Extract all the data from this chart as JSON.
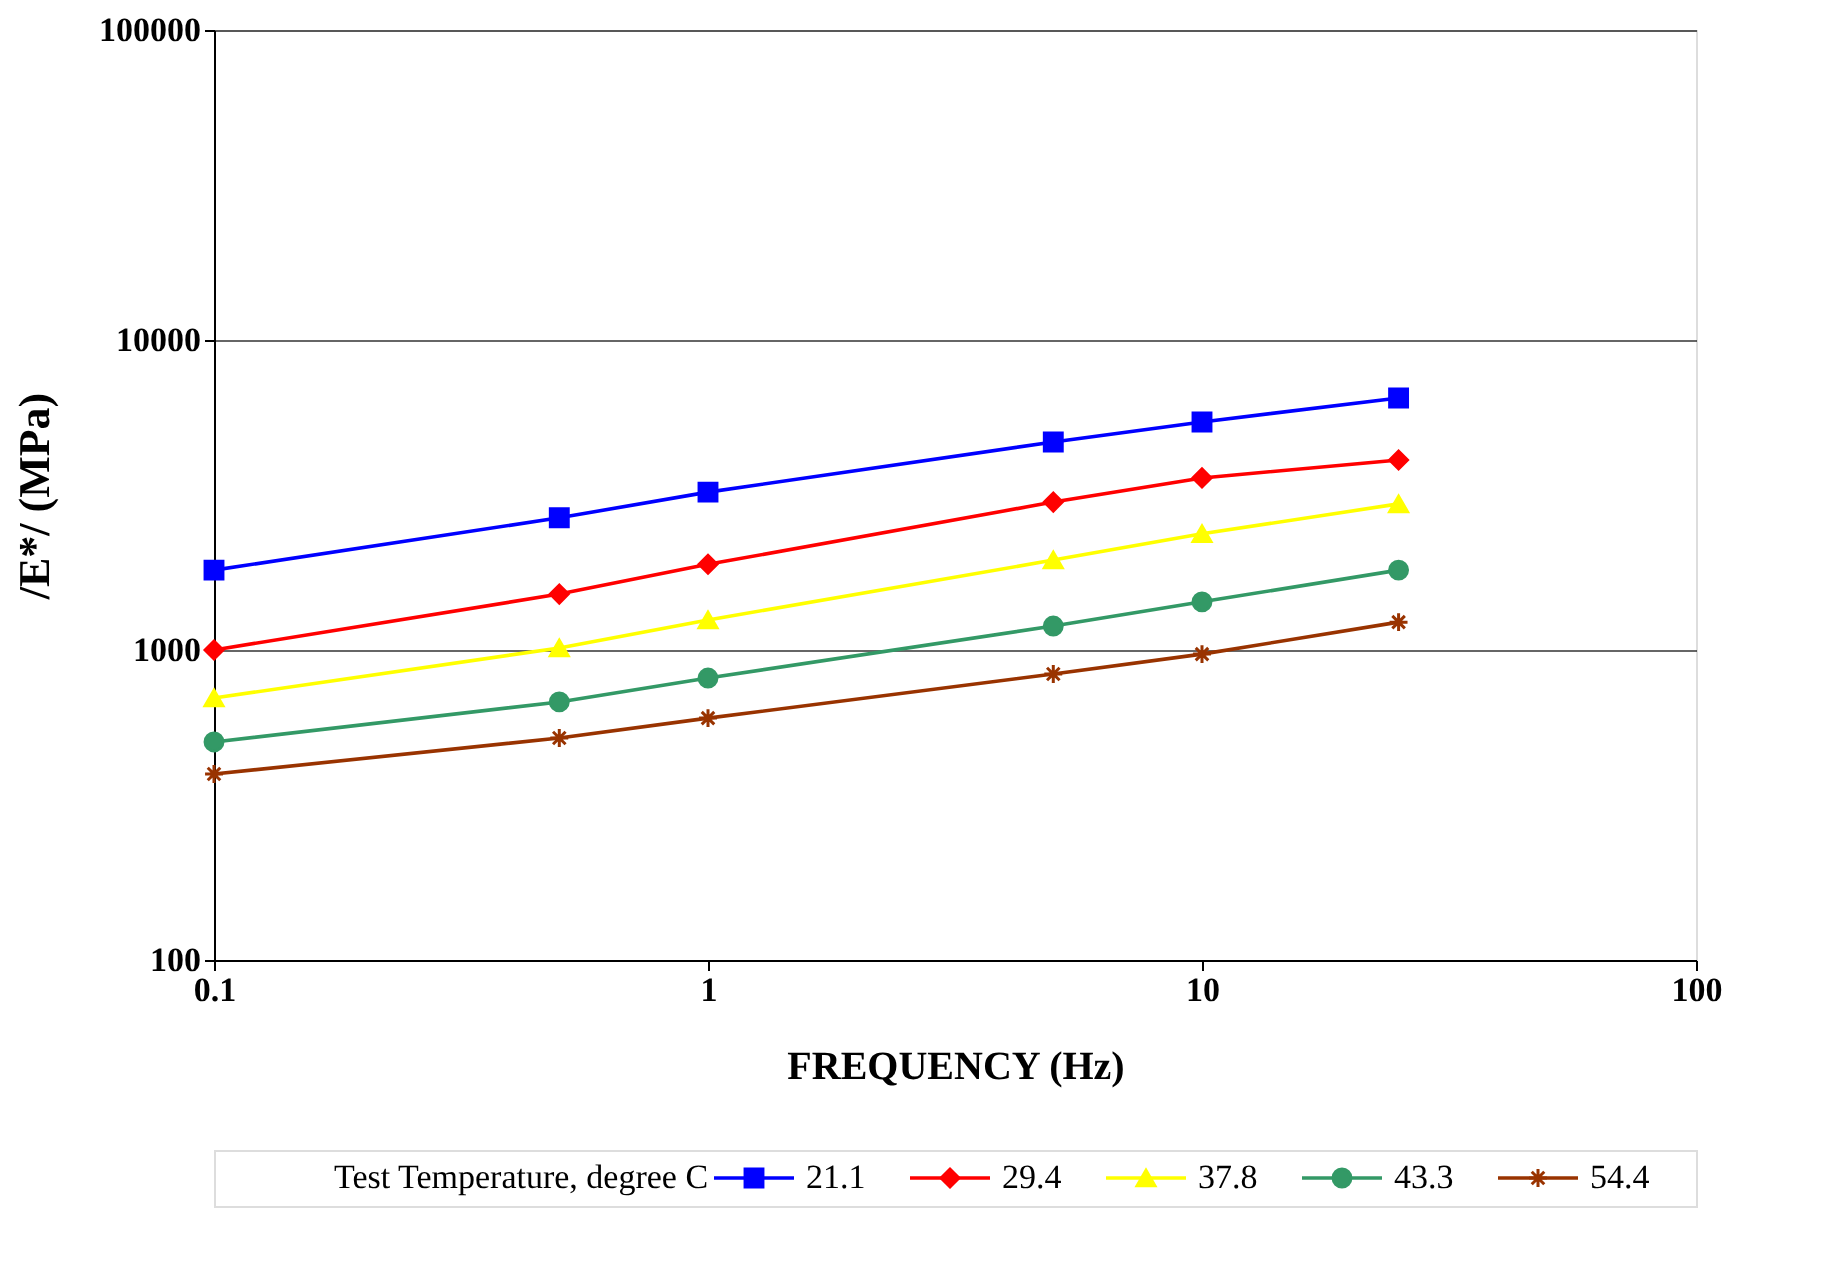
{
  "chart_data": {
    "type": "line",
    "xlabel": "FREQUENCY (Hz)",
    "ylabel": "/E*/ (MPa)",
    "legend_title": "Test Temperature, degree C",
    "log": "xy",
    "xlim": [
      0.1,
      100
    ],
    "xticks": [
      0.1,
      1,
      10,
      100
    ],
    "ylim": [
      100,
      100000
    ],
    "yticks": [
      100,
      1000,
      10000,
      100000
    ],
    "grid": "y",
    "legend": "bottom",
    "x": [
      0.1,
      0.5,
      1,
      5,
      10,
      25
    ],
    "series": [
      {
        "name": "21.1",
        "color": "#0000ff",
        "marker": "square",
        "values": [
          1810,
          2670,
          3230,
          4690,
          5440,
          6500
        ]
      },
      {
        "name": "29.4",
        "color": "#ff0000",
        "marker": "diamond",
        "values": [
          1000,
          1515,
          1890,
          3000,
          3590,
          4100
        ]
      },
      {
        "name": "37.8",
        "color": "#ffff00",
        "marker": "triangle",
        "values": [
          700,
          1015,
          1250,
          1950,
          2370,
          2960
        ]
      },
      {
        "name": "43.3",
        "color": "#339966",
        "marker": "circle",
        "values": [
          505,
          680,
          812,
          1195,
          1430,
          1810
        ]
      },
      {
        "name": "54.4",
        "color": "#993300",
        "marker": "cross",
        "values": [
          398,
          520,
          603,
          837,
          970,
          1230
        ]
      }
    ]
  }
}
